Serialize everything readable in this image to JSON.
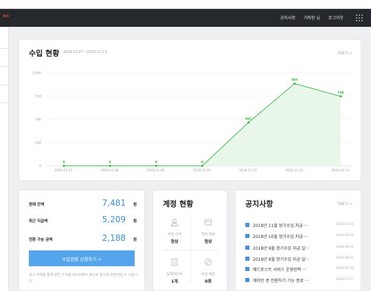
{
  "header": {
    "brand": "Bm",
    "nav": [
      "공지사항",
      "기파랑 님",
      "로그아웃"
    ]
  },
  "income": {
    "title": "수입 현황",
    "range": "2018.11.07 ~2018.11.13.",
    "more": "더보기 >"
  },
  "chart_data": {
    "type": "area",
    "categories": [
      "2018.11.07.",
      "2018.11.08.",
      "2018.11.09.",
      "2018.11.10.",
      "2018.11.11.",
      "2018.11.12.",
      "2018.11.13."
    ],
    "series": [
      {
        "values": [
          0,
          0,
          0,
          0,
          467,
          885,
          748
        ]
      }
    ],
    "ylim": [
      0,
      1000
    ],
    "yticks": [
      "0",
      "250",
      "500",
      "750",
      "1,000"
    ],
    "color": "#2db83d",
    "fill": "#e9f6ea",
    "grid": true
  },
  "balance": {
    "rows": [
      {
        "label": "현재 잔액",
        "value": "7,481",
        "unit": "원"
      },
      {
        "label": "최근 지급액",
        "value": "5,209",
        "unit": "원"
      },
      {
        "label": "전환 가능 금액",
        "value": "2,188",
        "unit": "원"
      }
    ],
    "button": "수입전환 신청하기  >",
    "note": "광고 게재를 통해 받은 수익을 네이버페이 포인트 등으로 전환하실 수 있습니다."
  },
  "account": {
    "title": "계정 현황",
    "cells": [
      {
        "icon": "user-icon",
        "label": "계정 상태",
        "value": "정상"
      },
      {
        "icon": "wallet-icon",
        "label": "계좌 정보",
        "value": "정상"
      },
      {
        "icon": "media-icon",
        "label": "등록미디어",
        "value": "1개"
      },
      {
        "icon": "ban-icon",
        "label": "이용 제한",
        "value": "0회"
      }
    ]
  },
  "notice": {
    "title": "공지사항",
    "more": "더보기 >",
    "items": [
      {
        "title": "2018년 11월 정기수입 지급 ···",
        "date": "2018.11.01"
      },
      {
        "title": "2018년 10월 정기수입 지급 ···",
        "date": "2018.10.01"
      },
      {
        "title": "2018년 9월 정기수입 지급 일···",
        "date": "2018.08.31"
      },
      {
        "title": "2018년 8월 정기수입 지급 일···",
        "date": "2018.08.01"
      },
      {
        "title": "애드포스트 서비스 운영정책 ···",
        "date": "2018.07.26"
      },
      {
        "title": "해피빈 콩 전환하기 기능 종료 ···",
        "date": "2018.07.17"
      }
    ]
  }
}
